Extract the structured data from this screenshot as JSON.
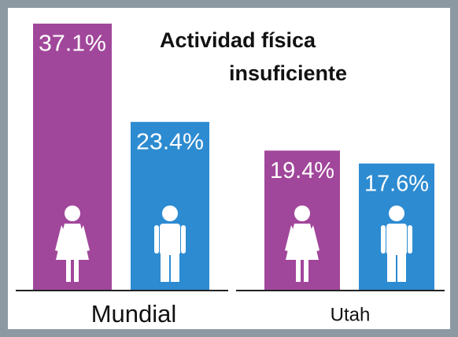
{
  "chart_data": {
    "type": "bar",
    "title_lines": [
      "Actividad física",
      "insuficiente"
    ],
    "categories": [
      "Mundial",
      "Utah"
    ],
    "series": [
      {
        "color": "#a1479b",
        "icon": "female",
        "values": [
          37.1,
          19.4
        ],
        "value_labels": [
          "37.1%",
          "19.4%"
        ]
      },
      {
        "color": "#2d8bd1",
        "icon": "male",
        "values": [
          23.4,
          17.6
        ],
        "value_labels": [
          "23.4%",
          "17.6%"
        ]
      }
    ]
  }
}
